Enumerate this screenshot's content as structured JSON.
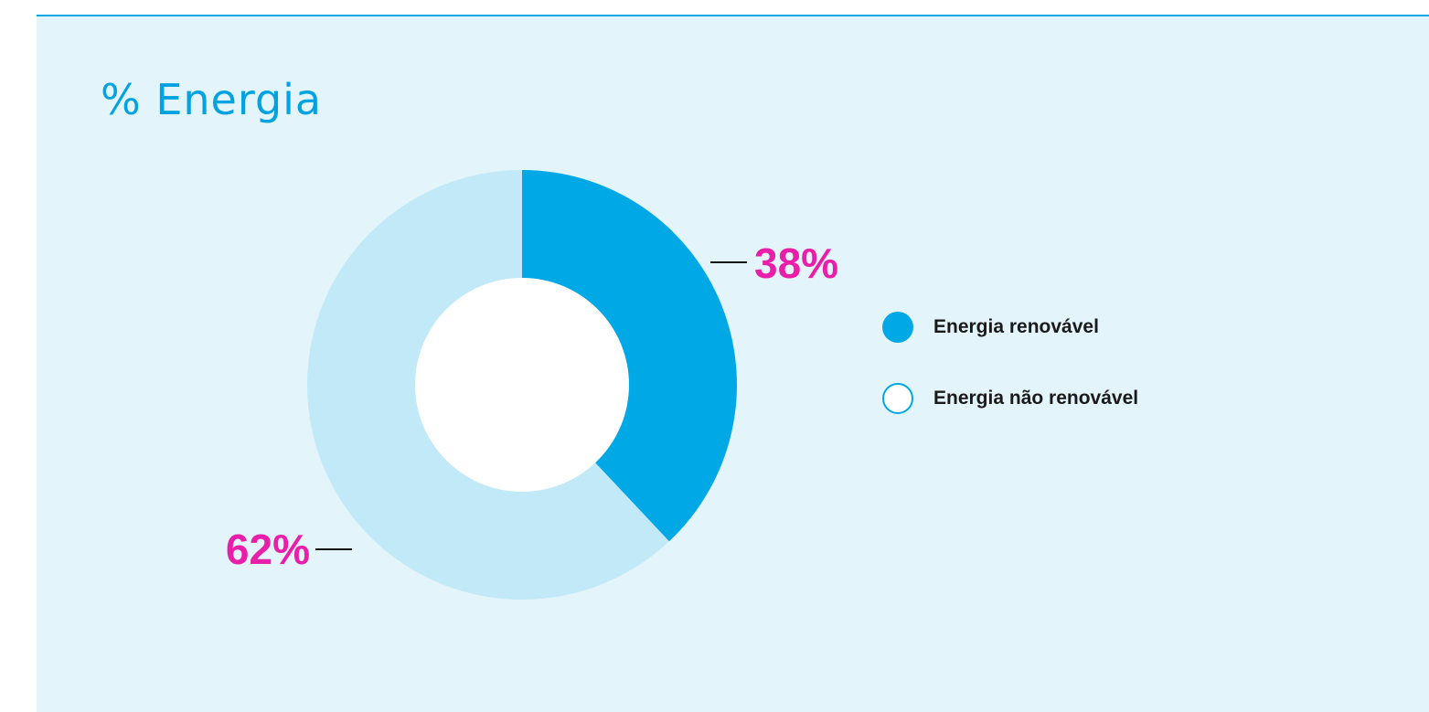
{
  "title": "% Energia",
  "colors": {
    "renewable": "#00a8e6",
    "non_renewable": "#c1e9f8",
    "hole": "#ffffff",
    "label": "#e91ea9",
    "line": "#111111"
  },
  "chart_data": {
    "type": "pie",
    "donut": true,
    "slices": [
      {
        "name": "Energia renovável",
        "value": 38,
        "label": "38%"
      },
      {
        "name": "Energia não renovável",
        "value": 62,
        "label": "62%"
      }
    ],
    "legend_position": "right"
  },
  "legend": {
    "items": [
      {
        "label": "Energia renovável",
        "style": "filled"
      },
      {
        "label": "Energia não renovável",
        "style": "outline"
      }
    ]
  }
}
